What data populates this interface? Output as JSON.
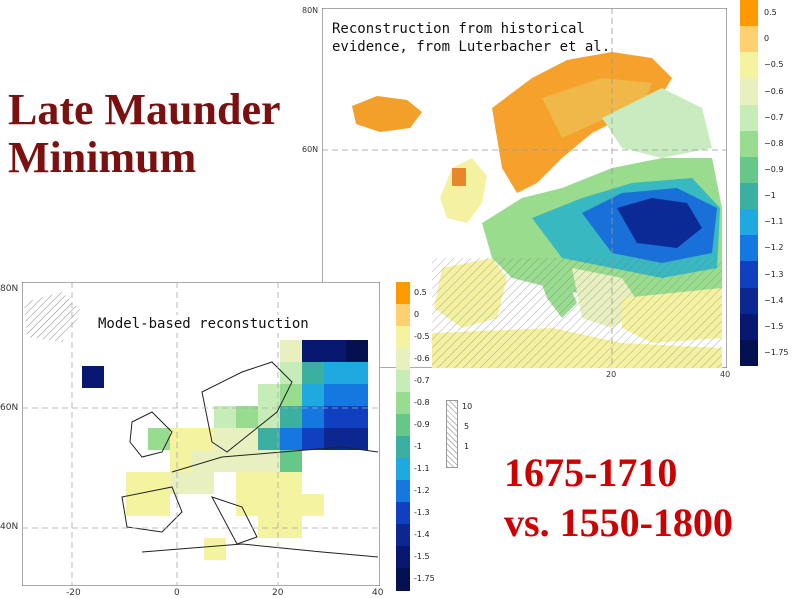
{
  "title": [
    "Late Maunder",
    "Minimum"
  ],
  "period": [
    "1675-1710",
    "vs. 1550-1800"
  ],
  "top_map": {
    "caption": [
      "Reconstruction from historical",
      "evidence, from Luterbacher et al."
    ],
    "lat_labels": [
      "80N",
      "60N"
    ],
    "lon_labels": [
      "20",
      "40"
    ],
    "colorbar": [
      "0.5",
      "0",
      "−0.5",
      "−0.6",
      "−0.7",
      "−0.8",
      "−0.9",
      "−1",
      "−1.1",
      "−1.2",
      "−1.3",
      "−1.4",
      "−1.5",
      "−1.75"
    ]
  },
  "bottom_map": {
    "caption": "Model-based reconstuction",
    "lat_labels": [
      "80N",
      "60N",
      "40N"
    ],
    "lon_labels": [
      "-20",
      "0",
      "20",
      "40"
    ],
    "colorbar": [
      "0.5",
      "0",
      "-0.5",
      "-0.6",
      "-0.7",
      "-0.8",
      "-0.9",
      "-1",
      "-1.1",
      "-1.2",
      "-1.3",
      "-1.4",
      "-1.5",
      "-1.75"
    ],
    "hatch_legend": [
      "10",
      "5",
      "1"
    ]
  },
  "colors": {
    "title": "#7a1010",
    "period": "#cc0000",
    "scale": [
      "#ff9900",
      "#ffd070",
      "#f4f4a0",
      "#e8f0c0",
      "#c6ecb8",
      "#98dc90",
      "#66c888",
      "#3cb0a0",
      "#20a8e0",
      "#1478e0",
      "#1040c0",
      "#0c2890",
      "#081870",
      "#041050"
    ]
  }
}
